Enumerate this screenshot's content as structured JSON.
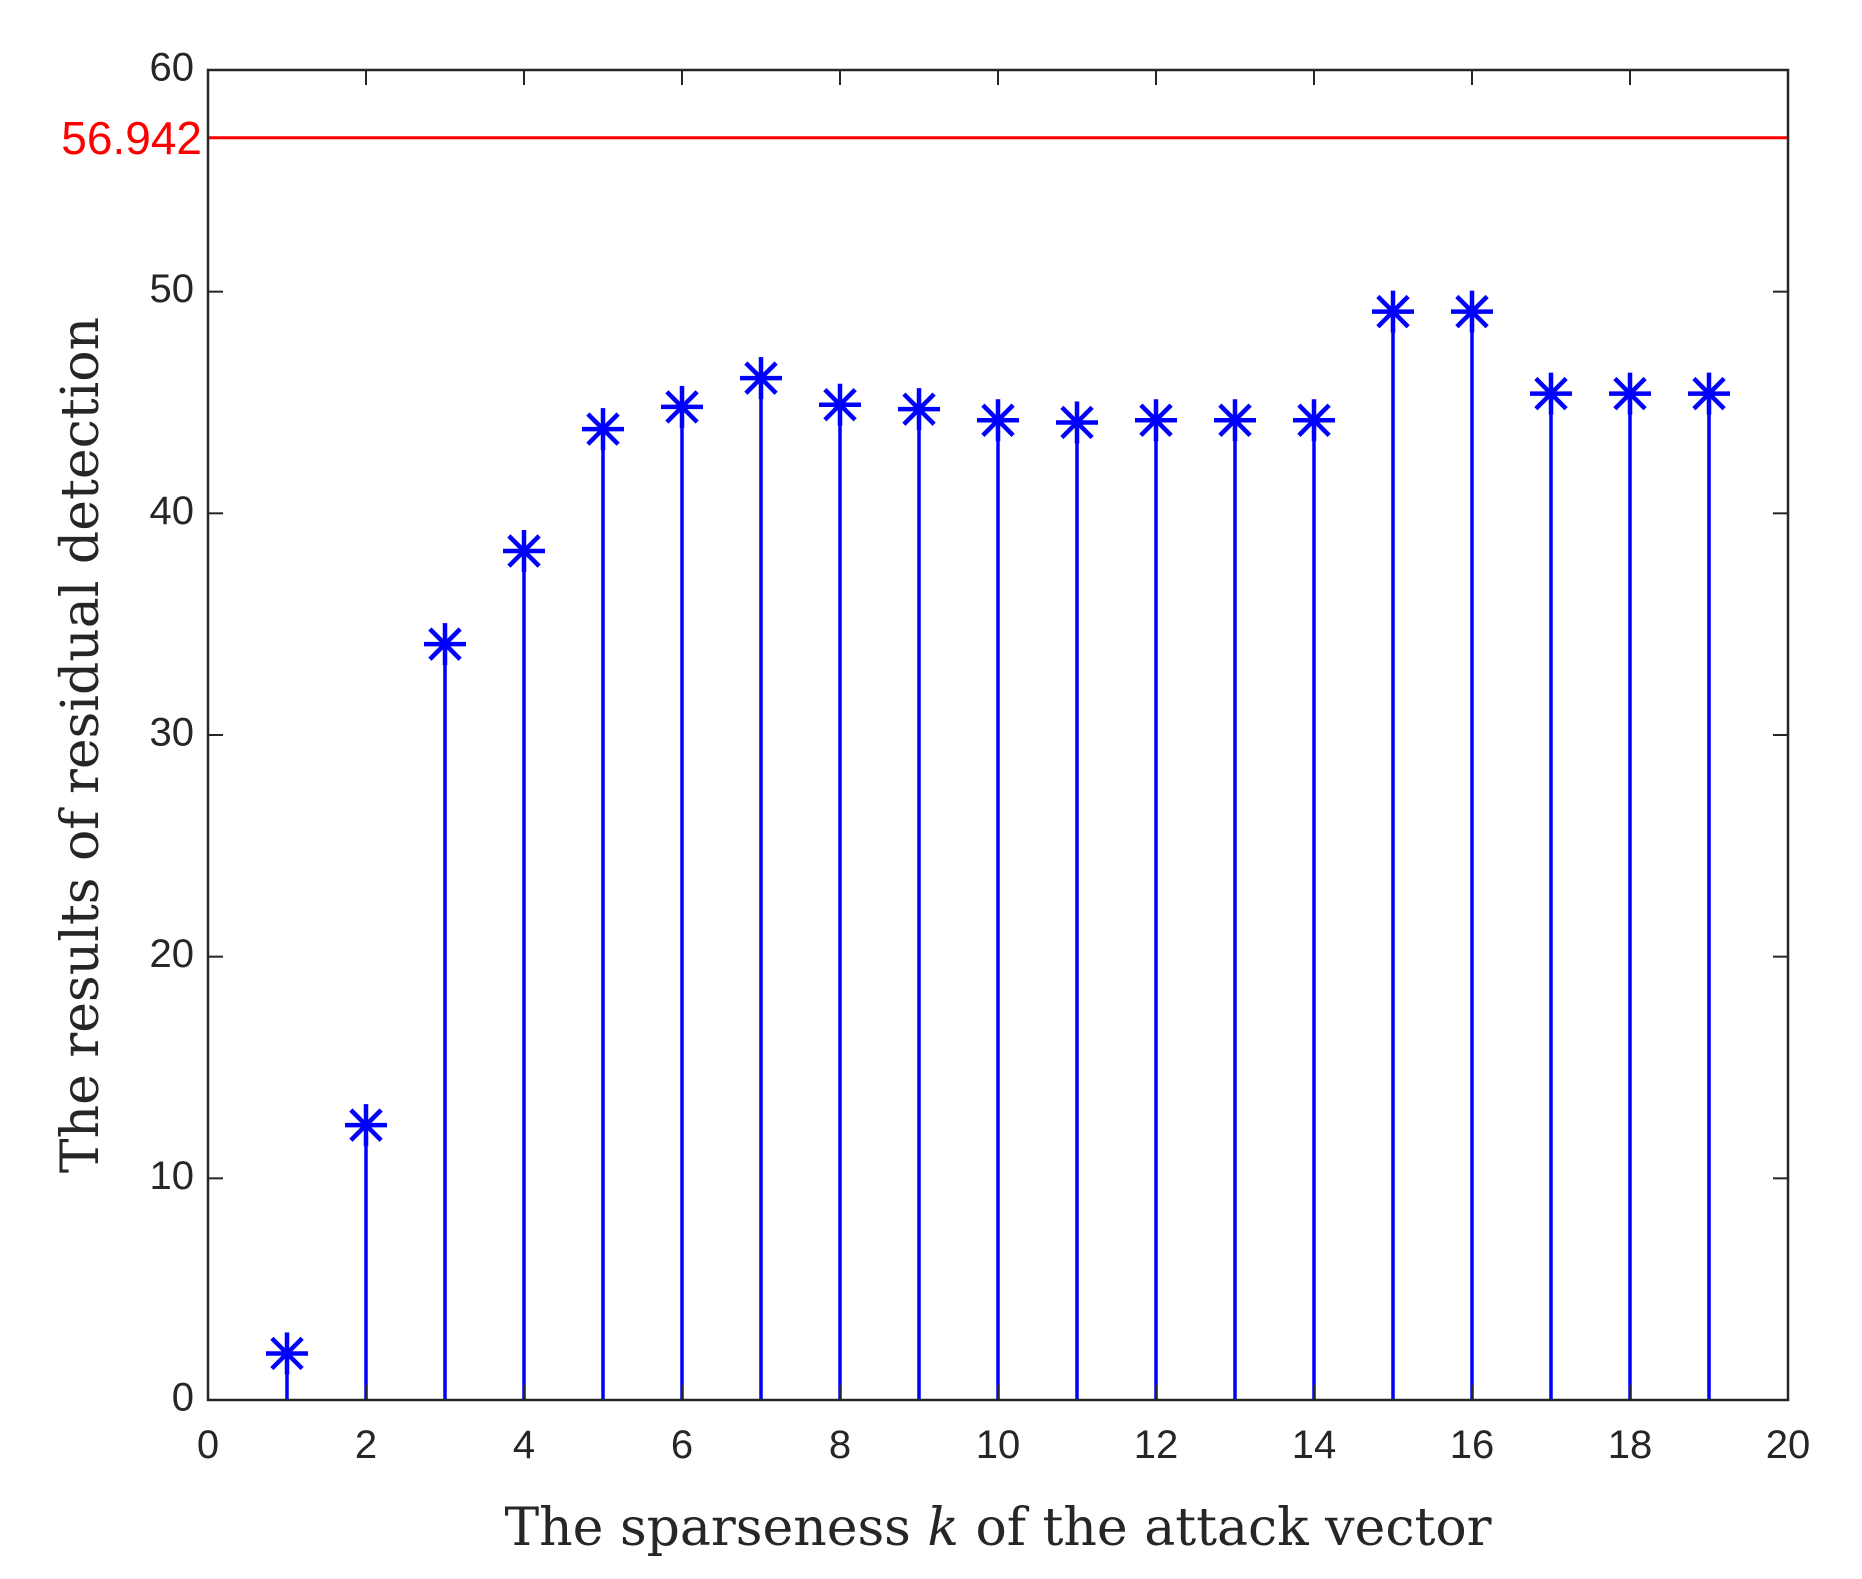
{
  "chart_data": {
    "type": "stem",
    "title": "",
    "xlabel_parts": [
      "The sparseness ",
      "k",
      " of the attack vector"
    ],
    "ylabel": "The results of residual detection",
    "xlim": [
      0,
      20
    ],
    "ylim": [
      0,
      60
    ],
    "xticks": [
      0,
      2,
      4,
      6,
      8,
      10,
      12,
      14,
      16,
      18,
      20
    ],
    "yticks": [
      0,
      10,
      20,
      30,
      40,
      50,
      60
    ],
    "series": [
      {
        "x": [
          1,
          2,
          3,
          4,
          5,
          6,
          7,
          8,
          9,
          10,
          11,
          12,
          13,
          14,
          15,
          16,
          17,
          18,
          19
        ],
        "values": [
          2.1,
          12.4,
          34.1,
          38.3,
          43.8,
          44.8,
          46.1,
          44.9,
          44.7,
          44.2,
          44.1,
          44.2,
          44.2,
          44.2,
          49.1,
          49.1,
          45.4,
          45.4,
          45.4
        ],
        "marker": "asterisk",
        "color": "#0000ff"
      }
    ],
    "threshold": {
      "value": 56.942,
      "label": "56.942",
      "color": "#ff0000"
    },
    "grid": false
  }
}
